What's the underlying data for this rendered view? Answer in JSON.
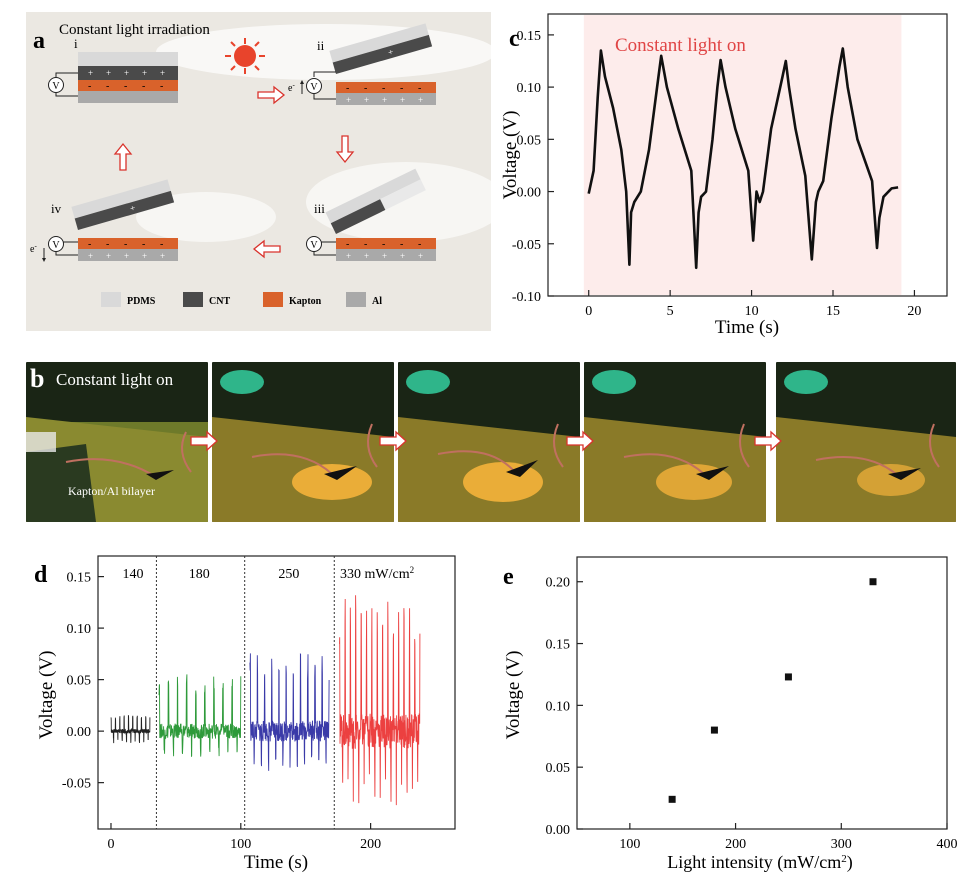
{
  "panel_a": {
    "letter": "a",
    "title": "Constant light irradiation",
    "steps": [
      "i",
      "ii",
      "iii",
      "iv"
    ],
    "meter": "V",
    "electron": "e",
    "electron_sup": "-",
    "legend": [
      "PDMS",
      "CNT",
      "Kapton",
      "Al"
    ],
    "colors": {
      "background": "#ebe8e2",
      "pdms": "#d9d9d9",
      "cnt": "#4a4a4a",
      "kapton": "#d9622b",
      "al": "#a9a9a9",
      "sun": "#e8442c",
      "arrow": "#d9332c"
    }
  },
  "panel_b": {
    "letter": "b",
    "label": "Constant light on",
    "sample_label": "Kapton/Al bilayer"
  },
  "panel_c": {
    "letter": "c",
    "annotation": "Constant light on",
    "annotation_color": "#e04545",
    "shade_color": "#fdeceb"
  },
  "panel_d": {
    "letter": "d",
    "segment_labels": [
      "140",
      "180",
      "250",
      "330 mW/cm"
    ],
    "unit_sup": "2",
    "colors": [
      "#222222",
      "#2e9a3a",
      "#3a3aa8",
      "#ec4040"
    ]
  },
  "panel_e": {
    "letter": "e",
    "xlabel_sup": "2",
    "xlabel_close": ")"
  },
  "chart_data": [
    {
      "id": "c",
      "type": "line",
      "xlabel": "Time (s)",
      "ylabel": "Voltage (V)",
      "xlim": [
        -2.5,
        22
      ],
      "ylim": [
        -0.1,
        0.17
      ],
      "xticks": [
        0,
        5,
        10,
        15,
        20
      ],
      "yticks": [
        -0.1,
        -0.05,
        0.0,
        0.05,
        0.1,
        0.15
      ],
      "ytick_labels": [
        "-0.10",
        "-0.05",
        "0.00",
        "0.05",
        "0.10",
        "0.15"
      ],
      "shaded_x": [
        -0.3,
        19.2
      ],
      "x": [
        0,
        0.3,
        0.55,
        0.75,
        1.0,
        1.5,
        2.0,
        2.3,
        2.5,
        2.6,
        2.8,
        3.2,
        3.7,
        4.2,
        4.45,
        4.8,
        5.5,
        6.3,
        6.6,
        6.75,
        6.9,
        7.2,
        7.6,
        7.9,
        8.1,
        8.4,
        9.0,
        9.8,
        10.1,
        10.3,
        10.5,
        10.7,
        11.2,
        11.9,
        12.1,
        12.3,
        12.7,
        13.3,
        13.7,
        13.95,
        14.1,
        14.4,
        14.9,
        15.4,
        15.6,
        15.9,
        16.5,
        17.4,
        17.7,
        17.85,
        18.1,
        18.6,
        19.0
      ],
      "y": [
        -0.002,
        0.02,
        0.09,
        0.135,
        0.11,
        0.08,
        0.04,
        0.0,
        -0.07,
        -0.02,
        -0.01,
        0.0,
        0.04,
        0.1,
        0.13,
        0.1,
        0.06,
        0.02,
        -0.073,
        -0.02,
        -0.005,
        0.0,
        0.05,
        0.1,
        0.126,
        0.1,
        0.06,
        0.02,
        -0.047,
        0.0,
        -0.01,
        0.0,
        0.06,
        0.11,
        0.125,
        0.1,
        0.06,
        0.015,
        -0.065,
        -0.01,
        0.0,
        0.01,
        0.07,
        0.12,
        0.137,
        0.1,
        0.05,
        0.01,
        -0.054,
        -0.025,
        -0.005,
        0.003,
        0.004
      ]
    },
    {
      "id": "d",
      "type": "line",
      "xlabel": "Time (s)",
      "ylabel": "Voltage (V)",
      "xlim": [
        -10,
        265
      ],
      "ylim": [
        -0.095,
        0.17
      ],
      "xticks": [
        0,
        100,
        200
      ],
      "yticks": [
        -0.05,
        0.0,
        0.05,
        0.1,
        0.15
      ],
      "ytick_labels": [
        "-0.05",
        "0.00",
        "0.05",
        "0.10",
        "0.15"
      ],
      "dividers_x": [
        35,
        103,
        172
      ],
      "series": [
        {
          "x_range": [
            0,
            30
          ],
          "peak_count": 9,
          "max": 0.016,
          "min": -0.012
        },
        {
          "x_range": [
            37,
            100
          ],
          "peak_count": 9,
          "max": 0.058,
          "min": -0.025
        },
        {
          "x_range": [
            107,
            168
          ],
          "peak_count": 11,
          "max": 0.082,
          "min": -0.045
        },
        {
          "x_range": [
            176,
            238
          ],
          "peak_count": 15,
          "max": 0.137,
          "min": -0.072
        }
      ]
    },
    {
      "id": "e",
      "type": "scatter",
      "xlabel": "Light intensity (mW/cm",
      "ylabel": "Voltage (V)",
      "xlim": [
        50,
        400
      ],
      "ylim": [
        0.0,
        0.22
      ],
      "xticks": [
        100,
        200,
        300,
        400
      ],
      "yticks": [
        0.0,
        0.05,
        0.1,
        0.15,
        0.2
      ],
      "ytick_labels": [
        "0.00",
        "0.05",
        "0.10",
        "0.15",
        "0.20"
      ],
      "x": [
        140,
        180,
        250,
        330
      ],
      "y": [
        0.024,
        0.08,
        0.123,
        0.2
      ]
    }
  ]
}
